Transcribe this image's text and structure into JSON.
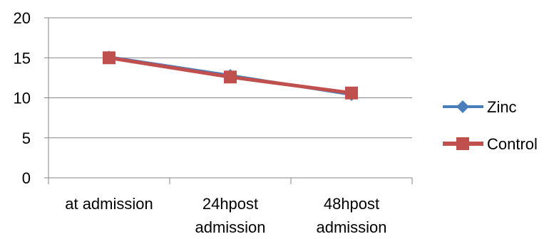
{
  "chart_data": {
    "type": "line",
    "categories": [
      [
        "at admission"
      ],
      [
        "24hpost",
        "admission"
      ],
      [
        "48hpost",
        "admission"
      ]
    ],
    "series": [
      {
        "name": "Zinc",
        "values": [
          15.1,
          12.8,
          10.4
        ],
        "color": "#4A7EBB",
        "marker": "diamond"
      },
      {
        "name": "Control",
        "values": [
          15.0,
          12.6,
          10.6
        ],
        "color": "#C0504D",
        "marker": "square"
      }
    ],
    "yticks": [
      "0",
      "5",
      "10",
      "15",
      "20"
    ],
    "ylim": [
      0,
      20
    ],
    "title": "",
    "xlabel": "",
    "ylabel": "",
    "grid": "horizontal",
    "legend": "right"
  }
}
